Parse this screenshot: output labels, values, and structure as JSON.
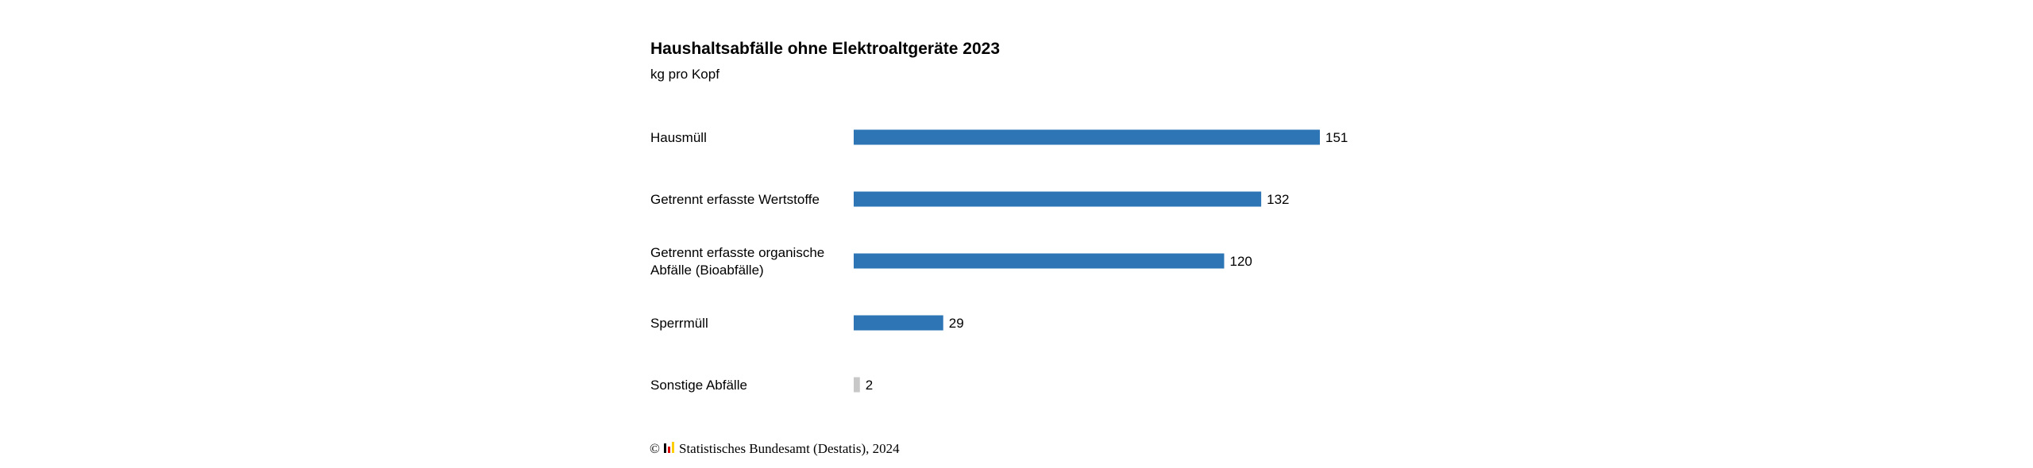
{
  "chart_data": {
    "type": "bar",
    "orientation": "horizontal",
    "title": "Haushaltsabfälle ohne Elektroaltgeräte 2023",
    "subtitle": "kg pro Kopf",
    "xlabel": "",
    "ylabel": "",
    "xlim": [
      0,
      151
    ],
    "grid": false,
    "legend": "none",
    "categories": [
      [
        "Hausmüll"
      ],
      [
        "Getrennt erfasste Wertstoffe"
      ],
      [
        "Getrennt erfasste organische",
        "Abfälle (Bioabfälle)"
      ],
      [
        "Sperrmüll"
      ],
      [
        "Sonstige Abfälle"
      ]
    ],
    "values": [
      151,
      132,
      120,
      29,
      2
    ],
    "value_labels": [
      "151",
      "132",
      "120",
      "29",
      "2"
    ],
    "bar_colors": [
      "#2e75b6",
      "#2e75b6",
      "#2e75b6",
      "#2e75b6",
      "#c8c8c8"
    ]
  },
  "footer": {
    "copyright_symbol": "©",
    "source": "Statistisches Bundesamt (Destatis), 2024",
    "logo_colors": [
      "#000000",
      "#dd0000",
      "#ffce00"
    ]
  }
}
